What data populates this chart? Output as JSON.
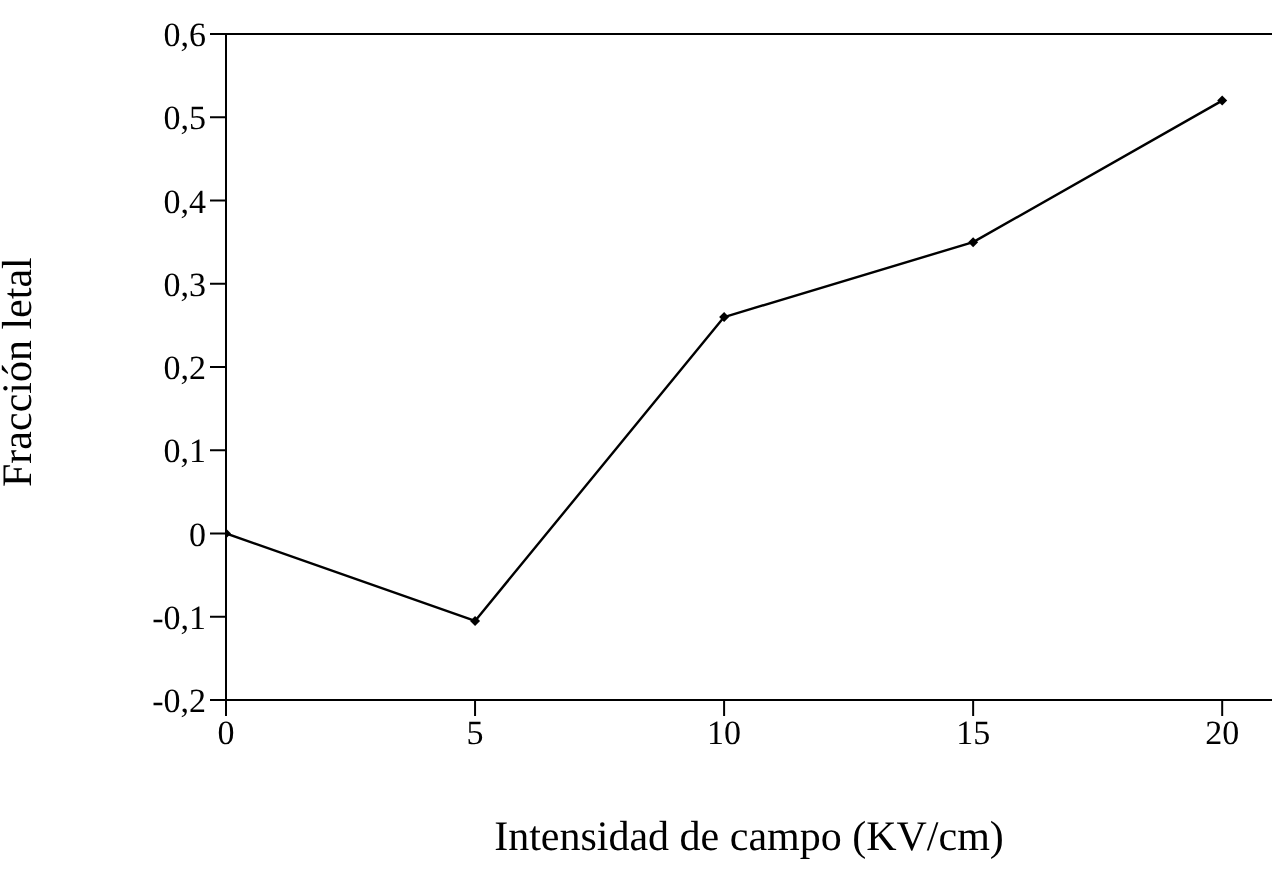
{
  "chart_data": {
    "type": "line",
    "xlabel": "Intensidad de campo (KV/cm)",
    "ylabel": "Fracción letal",
    "x": [
      0,
      5,
      10,
      15,
      20
    ],
    "series": [
      {
        "color": "#000000",
        "values": [
          0,
          -0.105,
          0.26,
          0.35,
          0.52
        ]
      }
    ],
    "xlim": [
      0,
      21
    ],
    "xticks": [
      0,
      5,
      10,
      15,
      20
    ],
    "ylim": [
      -0.2,
      0.6
    ],
    "yticks": [
      {
        "value": -0.2,
        "label": "-0,2"
      },
      {
        "value": -0.1,
        "label": "-0,1"
      },
      0,
      {
        "value": 0.1,
        "label": "0,1"
      },
      {
        "value": 0.2,
        "label": "0,2"
      },
      {
        "value": 0.3,
        "label": "0,3"
      },
      {
        "value": 0.4,
        "label": "0,4"
      },
      {
        "value": 0.5,
        "label": "0,5"
      },
      {
        "value": 0.6,
        "label": "0,6"
      }
    ],
    "grid": false,
    "legend": false,
    "marker": "diamond",
    "line_style": "solid"
  }
}
